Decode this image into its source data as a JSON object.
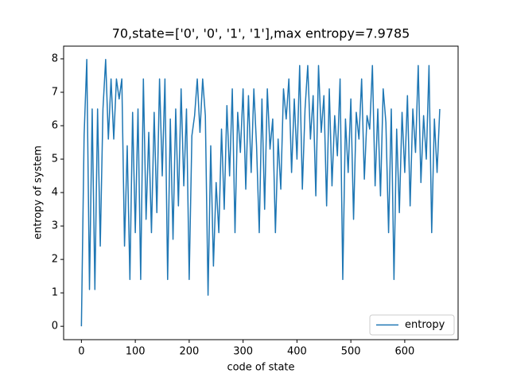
{
  "chart_data": {
    "type": "line",
    "title": "70,state=['0', '0', '1', '1'],max entropy=7.9785",
    "xlabel": "code of state",
    "ylabel": "entropy of system",
    "x": [
      0,
      5,
      10,
      15,
      20,
      25,
      30,
      35,
      40,
      45,
      50,
      55,
      60,
      65,
      70,
      75,
      80,
      85,
      90,
      95,
      100,
      105,
      110,
      115,
      120,
      125,
      130,
      135,
      140,
      145,
      150,
      155,
      160,
      165,
      170,
      175,
      180,
      185,
      190,
      195,
      200,
      205,
      210,
      215,
      220,
      225,
      230,
      235,
      240,
      245,
      250,
      255,
      260,
      265,
      270,
      275,
      280,
      285,
      290,
      295,
      300,
      305,
      310,
      315,
      320,
      325,
      330,
      335,
      340,
      345,
      350,
      355,
      360,
      365,
      370,
      375,
      380,
      385,
      390,
      395,
      400,
      405,
      410,
      415,
      420,
      425,
      430,
      435,
      440,
      445,
      450,
      455,
      460,
      465,
      470,
      475,
      480,
      485,
      490,
      495,
      500,
      505,
      510,
      515,
      520,
      525,
      530,
      535,
      540,
      545,
      550,
      555,
      560,
      565,
      570,
      575,
      580,
      585,
      590,
      595,
      600,
      605,
      610,
      615,
      620,
      625,
      630,
      635,
      640,
      645,
      650,
      655,
      660,
      665
    ],
    "series": [
      {
        "name": "entropy",
        "color": "#1f77b4",
        "values": [
          0,
          5.7,
          7.98,
          1.1,
          6.5,
          1.1,
          6.5,
          2.4,
          6.5,
          7.98,
          5.6,
          7.4,
          5.6,
          7.4,
          6.8,
          7.4,
          2.4,
          5.4,
          1.4,
          6.4,
          2.8,
          6.5,
          1.4,
          7.4,
          3.2,
          5.8,
          2.8,
          6.4,
          3.4,
          7.4,
          4.5,
          7.4,
          1.4,
          6.2,
          2.6,
          6.5,
          3.6,
          7.1,
          4.2,
          6.5,
          1.4,
          5.7,
          6.3,
          7.4,
          5.8,
          7.4,
          6.3,
          0.93,
          5.4,
          1.8,
          4.3,
          2.8,
          5.9,
          3.5,
          6.6,
          4.5,
          7.1,
          2.8,
          6.4,
          5.2,
          7.1,
          4.1,
          6.9,
          4.6,
          7.1,
          5.4,
          2.8,
          6.8,
          3.5,
          7.1,
          5.3,
          6.2,
          2.8,
          5.6,
          4.1,
          7.1,
          6.2,
          7.4,
          4.6,
          6.8,
          5.0,
          7.8,
          4.1,
          6.5,
          7.8,
          5.6,
          6.9,
          3.9,
          7.8,
          5.8,
          6.9,
          3.6,
          7.1,
          4.2,
          6.3,
          5.1,
          7.4,
          1.4,
          6.2,
          4.6,
          6.8,
          3.2,
          6.4,
          5.6,
          7.4,
          4.4,
          6.3,
          5.9,
          7.8,
          4.2,
          6.5,
          3.9,
          7.1,
          6.1,
          2.8,
          6.5,
          1.4,
          5.9,
          3.4,
          6.4,
          4.6,
          6.9,
          3.6,
          6.5,
          5.2,
          7.8,
          4.3,
          6.3,
          5.0,
          7.8,
          2.8,
          6.2,
          4.6,
          6.5
        ]
      }
    ],
    "xlim": [
      -33,
      699
    ],
    "ylim": [
      -0.4,
      8.38
    ],
    "xticks": [
      0,
      100,
      200,
      300,
      400,
      500,
      600
    ],
    "yticks": [
      0,
      1,
      2,
      3,
      4,
      5,
      6,
      7,
      8
    ],
    "legend": "lower right"
  }
}
